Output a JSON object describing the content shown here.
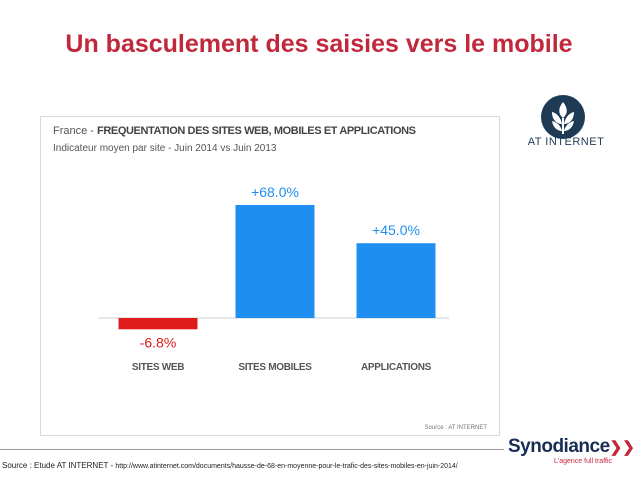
{
  "slide": {
    "title": "Un basculement des saisies vers le mobile",
    "source_label": "Source : Etude AT INTERNET - ",
    "source_url": "http://www.atinternet.com/documents/hausse-de-68-en-moyenne-pour-le-trafic-des-sites-mobiles-en-juin-2014/"
  },
  "logos": {
    "at_internet": "AT INTERNET",
    "synodiance_name": "Synodiance",
    "synodiance_tagline": "L'agence full traffic"
  },
  "chart_data": {
    "type": "bar",
    "title_prefix": "France - ",
    "title": "FREQUENTATION DES SITES WEB, MOBILES ET APPLICATIONS",
    "subtitle": "Indicateur moyen par site - Juin 2014 vs Juin 2013",
    "categories": [
      "SITES WEB",
      "SITES MOBILES",
      "APPLICATIONS"
    ],
    "values": [
      -6.8,
      68.0,
      45.0
    ],
    "value_labels": [
      "-6.8%",
      "+68.0%",
      "+45.0%"
    ],
    "source": "Source : AT INTERNET",
    "ylim": [
      -10,
      80
    ],
    "grid": false,
    "colors": {
      "positive": "#1e8ff0",
      "negative": "#e01b1b",
      "positive_label": "#1e8ff0",
      "negative_label": "#e01b1b"
    }
  }
}
